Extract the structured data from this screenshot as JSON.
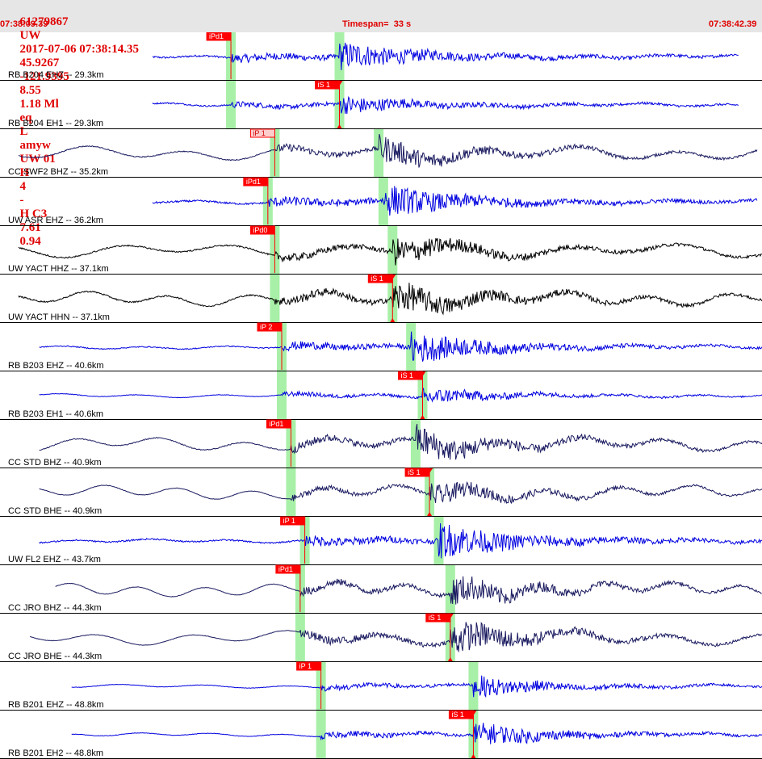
{
  "header": {
    "event_line_parts": [
      "61279867",
      "UW",
      "2017-07-06 07:38:14.35",
      "45.9267",
      "-121.9395",
      "8.55",
      "1.18 Ml",
      "eq",
      "L",
      "amyw",
      "UW 01",
      "H",
      "4",
      "-",
      "H C3",
      "7.61",
      "0.94"
    ],
    "start_time": "07:38:09.39",
    "timespan_label": "Timespan=",
    "timespan_value": "33 s",
    "end_time": "07:38:42.39"
  },
  "colors": {
    "header_text": "#e00000",
    "header_bg": "#e6e6e6",
    "trace_blue": "#0000e0",
    "trace_dark": "#1a1a60",
    "trace_black": "#000000",
    "pick_red": "#ff0000",
    "pick_hollow": "#ffcccc",
    "window_green": "#a8f0a8"
  },
  "panels": [
    {
      "label": "RB B204 EHZ -- 29.3km",
      "color": "blue",
      "start": 6.6,
      "end": 32.0,
      "p": 10.0,
      "s": 14.7,
      "amp": 0.3,
      "noise": 0.04,
      "picks": [
        {
          "label": "iPd1",
          "t": 10.0,
          "hollow": false
        }
      ]
    },
    {
      "label": "RB B204 EH1 -- 29.3km",
      "color": "blue",
      "start": 6.6,
      "end": 32.0,
      "p": 10.0,
      "s": 14.7,
      "amp": 0.2,
      "noise": 0.03,
      "picks": [
        {
          "label": "iS 1",
          "t": 14.7,
          "hollow": false
        }
      ]
    },
    {
      "label": "CC SWF2 BHZ -- 35.2km",
      "color": "dark",
      "start": 0.8,
      "end": 32.8,
      "p": 11.9,
      "s": 16.4,
      "amp": 0.3,
      "noise": 0.02,
      "picks": [
        {
          "label": "iP 1",
          "t": 11.9,
          "hollow": true
        }
      ]
    },
    {
      "label": "UW ASR EHZ -- 36.2km",
      "color": "blue",
      "start": 6.6,
      "end": 32.8,
      "p": 11.6,
      "s": 16.6,
      "amp": 0.35,
      "noise": 0.04,
      "picks": [
        {
          "label": "iPd1",
          "t": 11.6,
          "hollow": false
        }
      ]
    },
    {
      "label": "UW YACT HHZ -- 37.1km",
      "color": "black",
      "start": 0.8,
      "end": 33.0,
      "p": 11.9,
      "s": 17.0,
      "amp": 0.3,
      "noise": 0.03,
      "picks": [
        {
          "label": "iPd0",
          "t": 11.9,
          "hollow": false
        }
      ]
    },
    {
      "label": "UW YACT HHN -- 37.1km",
      "color": "black",
      "start": 0.8,
      "end": 33.0,
      "p": 11.9,
      "s": 17.0,
      "amp": 0.35,
      "noise": 0.03,
      "picks": [
        {
          "label": "iS 1",
          "t": 17.0,
          "hollow": false
        }
      ]
    },
    {
      "label": "RB B203 EHZ -- 40.6km",
      "color": "blue",
      "start": 1.7,
      "end": 33.6,
      "p": 12.2,
      "s": 17.8,
      "amp": 0.35,
      "noise": 0.02,
      "picks": [
        {
          "label": "iP 2",
          "t": 12.2,
          "hollow": false
        }
      ]
    },
    {
      "label": "RB B203 EH1 -- 40.6km",
      "color": "blue",
      "start": 1.7,
      "end": 33.6,
      "p": 12.2,
      "s": 18.3,
      "amp": 0.2,
      "noise": 0.01,
      "picks": [
        {
          "label": "iS 1",
          "t": 18.3,
          "hollow": false
        }
      ]
    },
    {
      "label": "CC STD BHZ -- 40.9km",
      "color": "dark",
      "start": 1.7,
      "end": 33.6,
      "p": 12.6,
      "s": 18.0,
      "amp": 0.35,
      "noise": 0.02,
      "picks": [
        {
          "label": "iPd1",
          "t": 12.6,
          "hollow": false
        }
      ]
    },
    {
      "label": "CC STD BHE -- 40.9km",
      "color": "dark",
      "start": 1.7,
      "end": 33.6,
      "p": 12.6,
      "s": 18.6,
      "amp": 0.25,
      "noise": 0.01,
      "picks": [
        {
          "label": "iS 1",
          "t": 18.6,
          "hollow": false
        }
      ]
    },
    {
      "label": "UW FL2 EHZ -- 43.7km",
      "color": "blue",
      "start": 1.7,
      "end": 33.6,
      "p": 13.2,
      "s": 19.0,
      "amp": 0.4,
      "noise": 0.03,
      "picks": [
        {
          "label": "iP 1",
          "t": 13.2,
          "hollow": false
        }
      ]
    },
    {
      "label": "CC JRO BHZ -- 44.3km",
      "color": "dark",
      "start": 2.4,
      "end": 33.0,
      "p": 13.0,
      "s": 19.5,
      "amp": 0.35,
      "noise": 0.01,
      "picks": [
        {
          "label": "iPd1",
          "t": 13.0,
          "hollow": false
        }
      ]
    },
    {
      "label": "CC JRO BHE -- 44.3km",
      "color": "dark",
      "start": 1.3,
      "end": 33.6,
      "p": 13.0,
      "s": 19.5,
      "amp": 0.4,
      "noise": 0.01,
      "picks": [
        {
          "label": "iS 1",
          "t": 19.5,
          "hollow": false
        }
      ]
    },
    {
      "label": "RB B201 EHZ -- 48.8km",
      "color": "blue",
      "start": 3.1,
      "end": 33.6,
      "p": 13.9,
      "s": 20.5,
      "amp": 0.25,
      "noise": 0.01,
      "picks": [
        {
          "label": "iP 1",
          "t": 13.9,
          "hollow": false
        }
      ]
    },
    {
      "label": "RB B201 EH2 -- 48.8km",
      "color": "blue",
      "start": 3.1,
      "end": 33.6,
      "p": 13.9,
      "s": 20.5,
      "amp": 0.28,
      "noise": 0.01,
      "picks": [
        {
          "label": "iS 1",
          "t": 20.5,
          "hollow": false
        }
      ]
    }
  ],
  "timespan_s": 33
}
